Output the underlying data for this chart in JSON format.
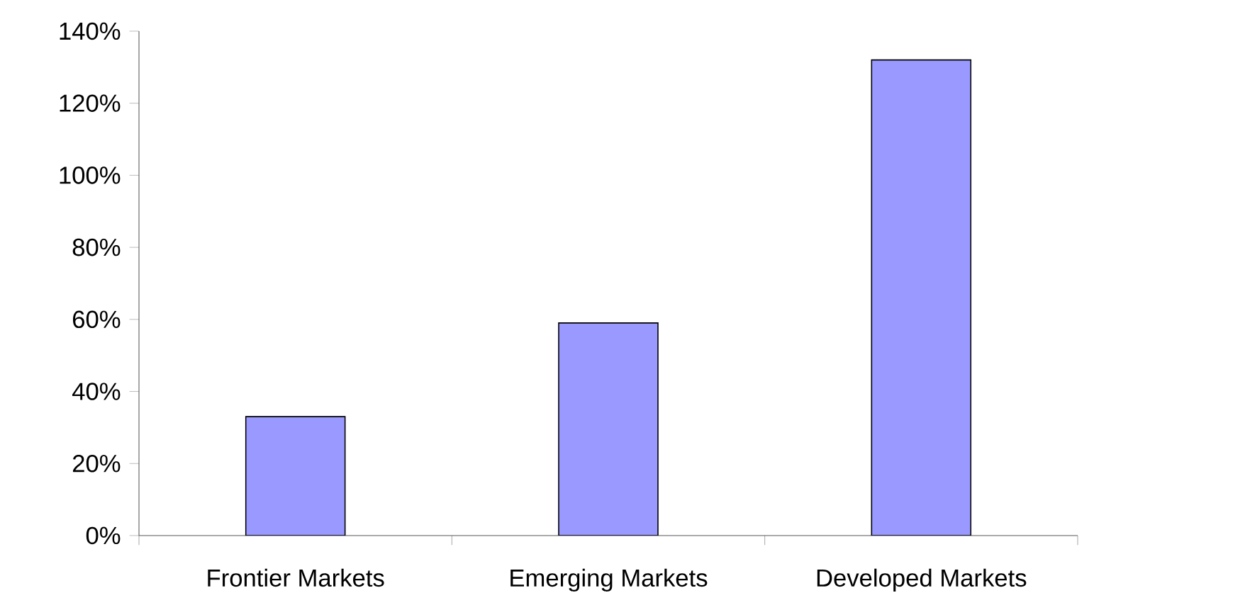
{
  "chart_data": {
    "type": "bar",
    "categories": [
      "Frontier Markets",
      "Emerging Markets",
      "Developed Markets"
    ],
    "values": [
      33,
      59,
      132
    ],
    "color": "#9999ff",
    "ylim": [
      0,
      140
    ],
    "yticks": [
      {
        "value": 0,
        "label": "0%"
      },
      {
        "value": 20,
        "label": "20%"
      },
      {
        "value": 40,
        "label": "40%"
      },
      {
        "value": 60,
        "label": "60%"
      },
      {
        "value": 80,
        "label": "80%"
      },
      {
        "value": 100,
        "label": "100%"
      },
      {
        "value": 120,
        "label": "120%"
      },
      {
        "value": 140,
        "label": "140%"
      }
    ],
    "grid": false
  }
}
